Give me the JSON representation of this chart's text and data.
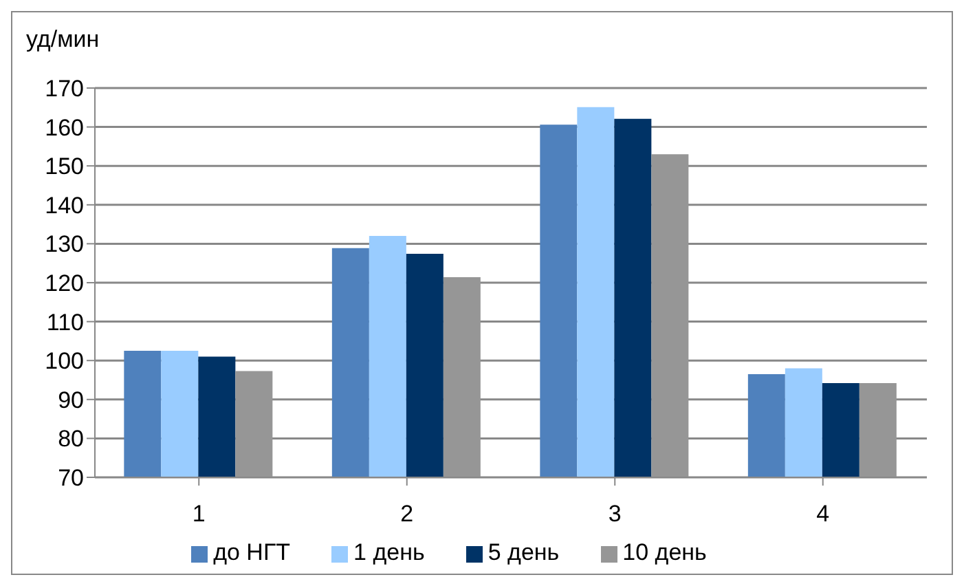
{
  "chart_data": {
    "type": "bar",
    "ylabel": "уд/мин",
    "categories": [
      "1",
      "2",
      "3",
      "4"
    ],
    "series": [
      {
        "name": "до НГТ",
        "color": "#4f81bd",
        "values": [
          102.5,
          128.9,
          160.6,
          96.5
        ]
      },
      {
        "name": "1 день",
        "color": "#99ccff",
        "values": [
          102.5,
          132,
          165.1,
          98
        ]
      },
      {
        "name": "5 день",
        "color": "#003366",
        "values": [
          101,
          127.4,
          162.1,
          94.2
        ]
      },
      {
        "name": "10 день",
        "color": "#969696",
        "values": [
          97.3,
          121.4,
          153,
          94.2
        ]
      }
    ],
    "ylim": [
      70,
      170
    ],
    "yticks": [
      70,
      80,
      90,
      100,
      110,
      120,
      130,
      140,
      150,
      160,
      170
    ],
    "grid": "y",
    "legend": "bottom"
  }
}
